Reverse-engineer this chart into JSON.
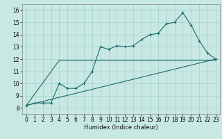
{
  "xlabel": "Humidex (Indice chaleur)",
  "ylabel": "",
  "xlim": [
    -0.5,
    23.5
  ],
  "ylim": [
    7.5,
    16.5
  ],
  "bg_color": "#c8e8e4",
  "grid_color": "#a8d4d0",
  "line_color": "#1a6b6b",
  "line1_x": [
    0,
    1,
    2,
    3,
    4,
    5,
    6,
    7,
    8,
    9,
    10,
    11,
    12,
    13,
    14,
    15,
    16,
    17,
    18,
    19,
    20,
    21,
    22,
    23
  ],
  "line1_y": [
    8.2,
    8.4,
    8.4,
    8.4,
    10.0,
    9.6,
    9.6,
    10.0,
    11.0,
    13.0,
    12.8,
    13.1,
    13.0,
    13.1,
    13.6,
    14.0,
    14.1,
    14.9,
    15.0,
    15.8,
    14.8,
    13.5,
    12.5,
    12.0
  ],
  "line2_x": [
    0,
    23
  ],
  "line2_y": [
    8.2,
    12.0
  ],
  "line3_x": [
    0,
    4,
    23
  ],
  "line3_y": [
    8.2,
    11.9,
    11.9
  ],
  "xticks": [
    0,
    1,
    2,
    3,
    4,
    5,
    6,
    7,
    8,
    9,
    10,
    11,
    12,
    13,
    14,
    15,
    16,
    17,
    18,
    19,
    20,
    21,
    22,
    23
  ],
  "yticks": [
    8,
    9,
    10,
    11,
    12,
    13,
    14,
    15,
    16
  ],
  "xlabel_fontsize": 6,
  "tick_fontsize": 5.5
}
